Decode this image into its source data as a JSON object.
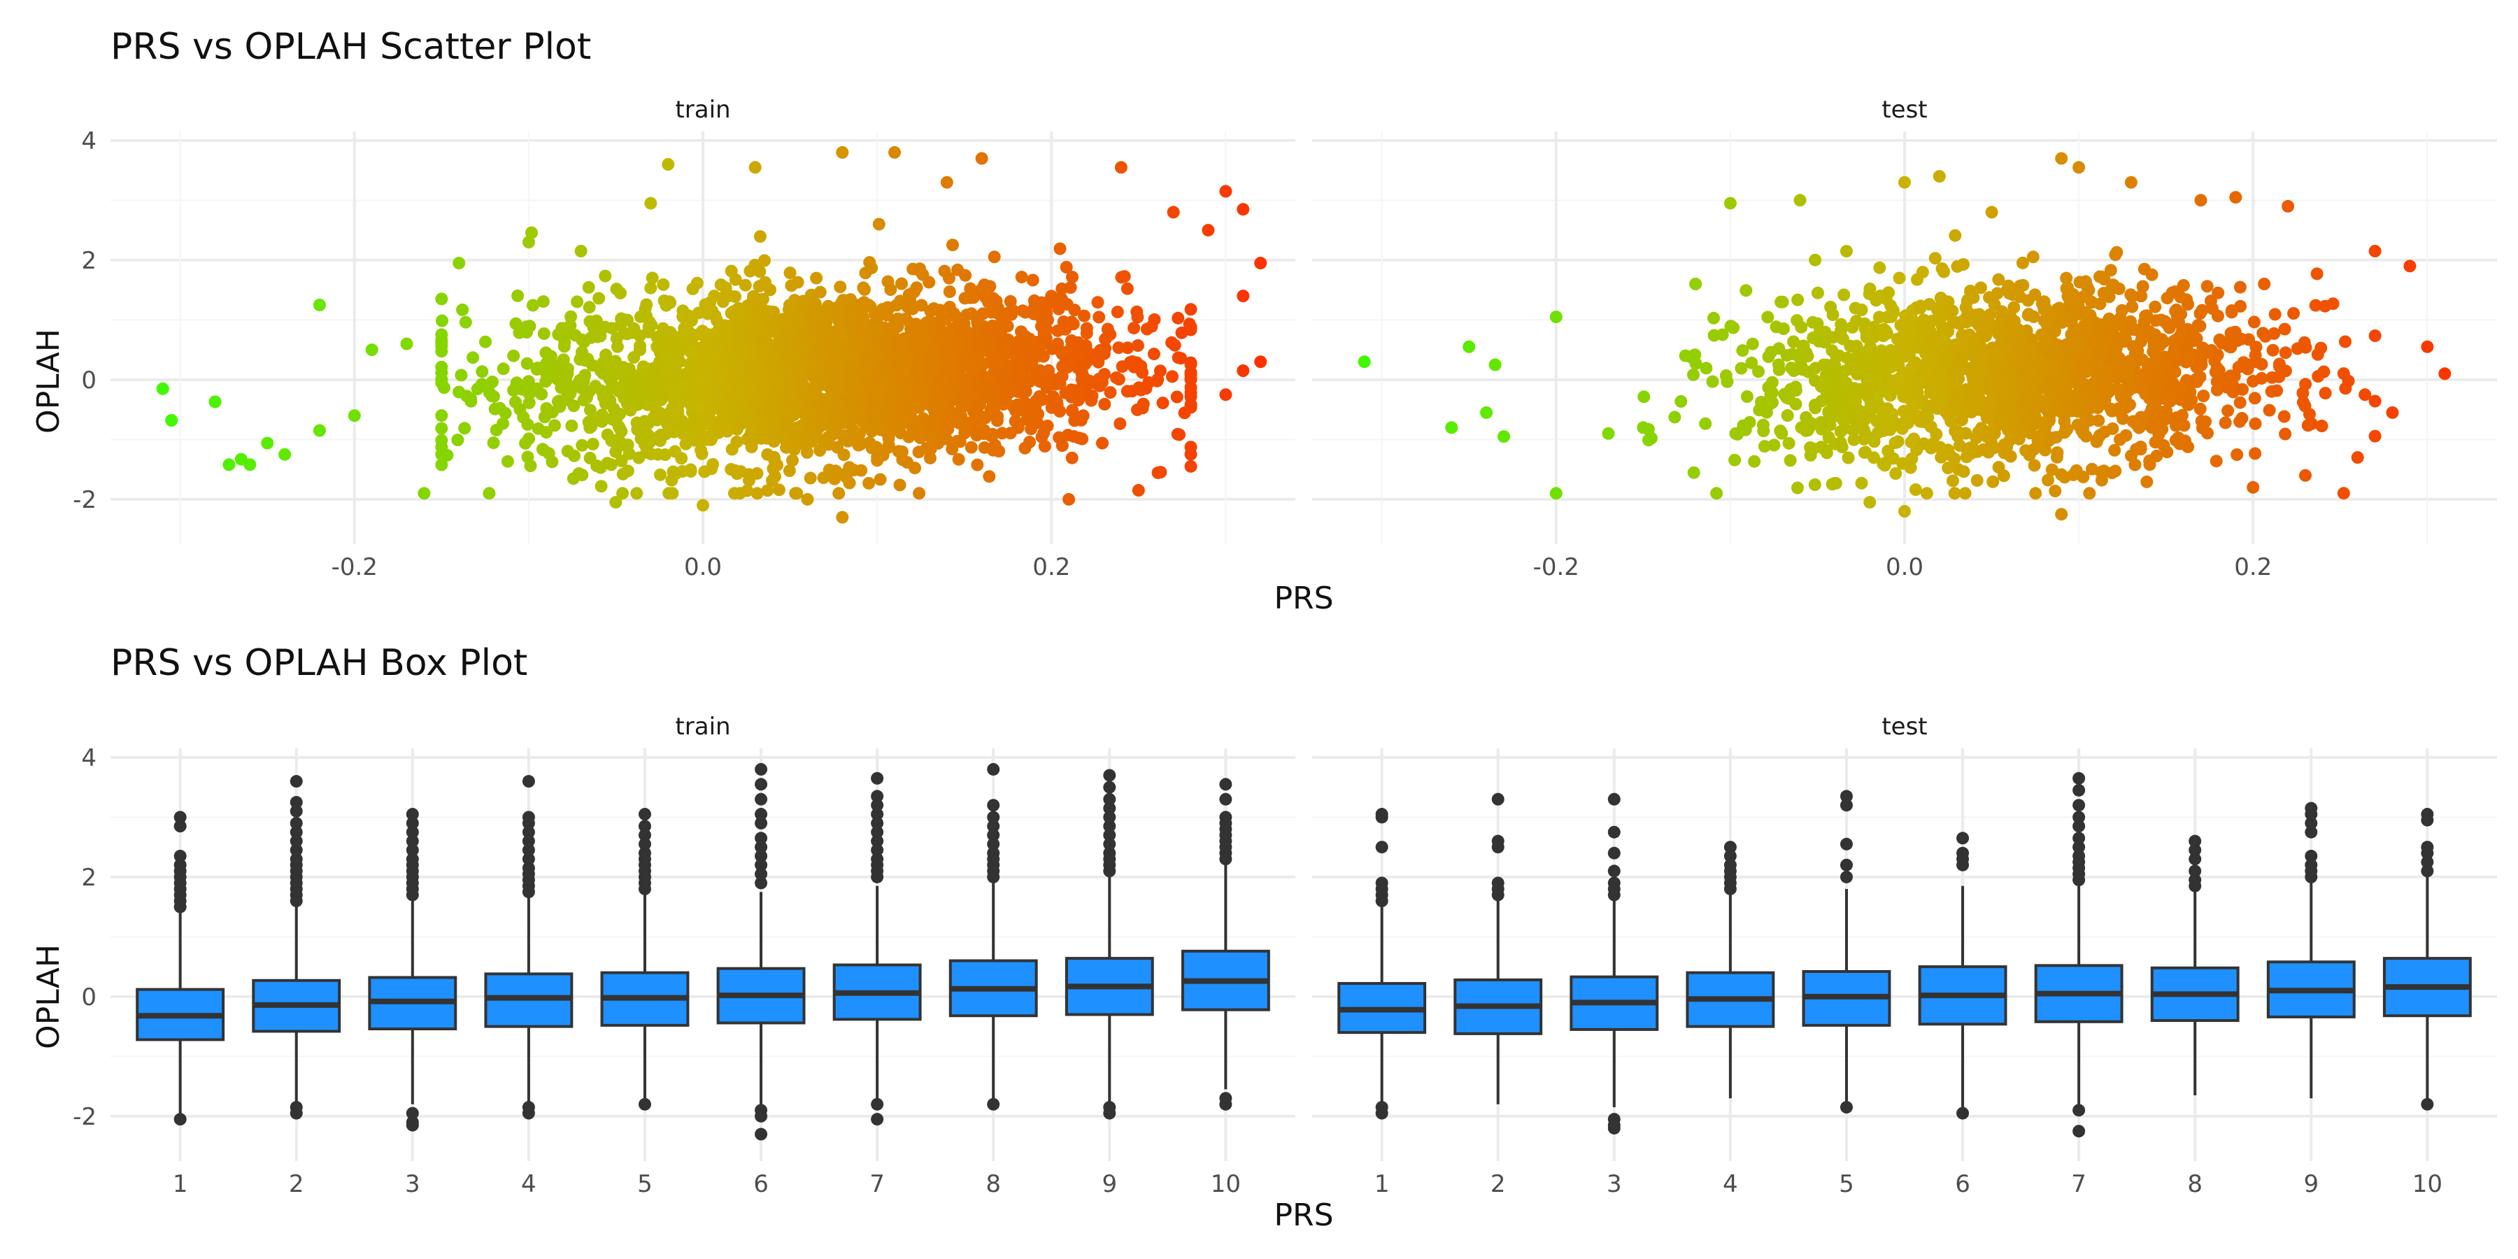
{
  "colors": {
    "scatter_low": "#33ff00",
    "scatter_mid": "#c8b400",
    "scatter_high": "#ff2a00",
    "box_fill": "#1e90ff",
    "box_line": "#333333",
    "grid_major": "#ebebeb",
    "grid_minor": "#f5f5f5"
  },
  "chart_data": [
    {
      "type": "scatter",
      "title": "PRS vs OPLAH Scatter Plot",
      "xlabel": "PRS",
      "ylabel": "OPLAH",
      "facets": [
        "train",
        "test"
      ],
      "xlim": [
        -0.34,
        0.34
      ],
      "ylim": [
        -2.75,
        4.15
      ],
      "x_ticks": [
        -0.2,
        0.0,
        0.2
      ],
      "x_tick_labels": [
        "-0.2",
        "0.0",
        "0.2"
      ],
      "y_ticks": [
        -2,
        0,
        2,
        4
      ],
      "y_tick_labels": [
        "-2",
        "0",
        "2",
        "4"
      ],
      "grid": true,
      "color_by": "x",
      "color_scale": "green-to-red gradient",
      "series": [
        {
          "facet": "train",
          "x_range": [
            -0.31,
            0.32
          ],
          "y_center": 0,
          "points": [
            [
              -0.31,
              -0.15
            ],
            [
              -0.305,
              -0.68
            ],
            [
              -0.28,
              -0.37
            ],
            [
              -0.272,
              -1.42
            ],
            [
              -0.265,
              -1.33
            ],
            [
              -0.26,
              -1.42
            ],
            [
              -0.25,
              -1.06
            ],
            [
              -0.24,
              -1.25
            ],
            [
              -0.22,
              1.25
            ],
            [
              -0.22,
              -0.85
            ],
            [
              -0.2,
              -0.6
            ],
            [
              -0.19,
              0.5
            ],
            [
              -0.17,
              0.6
            ],
            [
              -0.16,
              -1.9
            ],
            [
              -0.14,
              1.95
            ],
            [
              -0.1,
              2.3
            ],
            [
              -0.07,
              2.15
            ],
            [
              -0.05,
              -2.05
            ],
            [
              -0.03,
              2.95
            ],
            [
              -0.02,
              3.6
            ],
            [
              0.0,
              -2.1
            ],
            [
              0.03,
              3.55
            ],
            [
              0.06,
              -2.0
            ],
            [
              0.08,
              -2.3
            ],
            [
              0.08,
              3.8
            ],
            [
              0.11,
              3.8
            ],
            [
              0.14,
              3.3
            ],
            [
              0.16,
              3.7
            ],
            [
              0.21,
              -2.0
            ],
            [
              0.24,
              3.55
            ],
            [
              0.25,
              -1.85
            ],
            [
              0.27,
              2.8
            ],
            [
              0.28,
              -1.45
            ],
            [
              0.29,
              2.5
            ],
            [
              0.3,
              3.15
            ],
            [
              0.31,
              2.85
            ],
            [
              0.31,
              1.4
            ],
            [
              0.32,
              1.95
            ],
            [
              0.32,
              0.3
            ],
            [
              0.3,
              -0.25
            ],
            [
              0.31,
              0.15
            ]
          ]
        },
        {
          "facet": "test",
          "x_range": [
            -0.31,
            0.31
          ],
          "y_center": 0,
          "points": [
            [
              -0.31,
              0.3
            ],
            [
              -0.26,
              -0.8
            ],
            [
              -0.25,
              0.55
            ],
            [
              -0.24,
              -0.55
            ],
            [
              -0.235,
              0.25
            ],
            [
              -0.23,
              -0.95
            ],
            [
              -0.2,
              1.05
            ],
            [
              -0.2,
              -1.9
            ],
            [
              -0.17,
              -0.9
            ],
            [
              -0.12,
              1.6
            ],
            [
              -0.1,
              2.95
            ],
            [
              -0.07,
              1.3
            ],
            [
              -0.06,
              3.0
            ],
            [
              -0.02,
              -2.05
            ],
            [
              0.0,
              -2.2
            ],
            [
              0.0,
              3.3
            ],
            [
              0.02,
              3.4
            ],
            [
              0.05,
              2.8
            ],
            [
              0.09,
              -2.25
            ],
            [
              0.09,
              3.7
            ],
            [
              0.1,
              3.55
            ],
            [
              0.13,
              3.3
            ],
            [
              0.17,
              3.0
            ],
            [
              0.19,
              3.05
            ],
            [
              0.2,
              -1.8
            ],
            [
              0.22,
              2.9
            ],
            [
              0.23,
              -1.6
            ],
            [
              0.26,
              -1.3
            ],
            [
              0.27,
              2.15
            ],
            [
              0.28,
              -0.55
            ],
            [
              0.29,
              1.9
            ],
            [
              0.3,
              0.55
            ],
            [
              0.31,
              0.1
            ]
          ]
        }
      ]
    },
    {
      "type": "box",
      "title": "PRS vs OPLAH Box Plot",
      "xlabel": "PRS",
      "ylabel": "OPLAH",
      "facets": [
        "train",
        "test"
      ],
      "categories": [
        "1",
        "2",
        "3",
        "4",
        "5",
        "6",
        "7",
        "8",
        "9",
        "10"
      ],
      "ylim": [
        -2.75,
        4.15
      ],
      "y_ticks": [
        -2,
        0,
        2,
        4
      ],
      "y_tick_labels": [
        "-2",
        "0",
        "2",
        "4"
      ],
      "grid": true,
      "series": [
        {
          "facet": "train",
          "boxes": [
            {
              "category": "1",
              "q1": -0.72,
              "median": -0.32,
              "q3": 0.12,
              "whisker_low": -2.0,
              "whisker_high": 1.4,
              "outliers": [
                1.5,
                1.6,
                1.7,
                1.8,
                1.9,
                2.0,
                2.1,
                2.2,
                2.35,
                2.85,
                3.0,
                -2.05
              ]
            },
            {
              "category": "2",
              "q1": -0.58,
              "median": -0.14,
              "q3": 0.27,
              "whisker_low": -1.8,
              "whisker_high": 1.5,
              "outliers": [
                1.6,
                1.7,
                1.8,
                1.9,
                2.0,
                2.1,
                2.2,
                2.3,
                2.45,
                2.6,
                2.75,
                2.9,
                3.1,
                3.25,
                3.6,
                -1.85,
                -1.95
              ]
            },
            {
              "category": "3",
              "q1": -0.54,
              "median": -0.08,
              "q3": 0.32,
              "whisker_low": -1.8,
              "whisker_high": 1.6,
              "outliers": [
                1.7,
                1.8,
                1.9,
                2.0,
                2.1,
                2.2,
                2.3,
                2.45,
                2.6,
                2.75,
                2.9,
                3.05,
                -1.95,
                -2.1,
                -2.15
              ]
            },
            {
              "category": "4",
              "q1": -0.5,
              "median": -0.02,
              "q3": 0.38,
              "whisker_low": -1.8,
              "whisker_high": 1.65,
              "outliers": [
                1.75,
                1.85,
                1.95,
                2.05,
                2.15,
                2.3,
                2.45,
                2.6,
                2.75,
                2.9,
                3.0,
                3.6,
                -1.85,
                -1.95
              ]
            },
            {
              "category": "5",
              "q1": -0.48,
              "median": -0.02,
              "q3": 0.4,
              "whisker_low": -1.75,
              "whisker_high": 1.7,
              "outliers": [
                1.8,
                1.9,
                2.0,
                2.1,
                2.2,
                2.3,
                2.4,
                2.55,
                2.7,
                2.85,
                3.05,
                -1.8
              ]
            },
            {
              "category": "6",
              "q1": -0.44,
              "median": 0.02,
              "q3": 0.47,
              "whisker_low": -1.8,
              "whisker_high": 1.75,
              "outliers": [
                1.9,
                2.05,
                2.2,
                2.35,
                2.5,
                2.65,
                2.9,
                3.05,
                3.3,
                3.55,
                3.8,
                -1.9,
                -2.0,
                -2.3
              ]
            },
            {
              "category": "7",
              "q1": -0.38,
              "median": 0.06,
              "q3": 0.53,
              "whisker_low": -1.75,
              "whisker_high": 1.85,
              "outliers": [
                2.0,
                2.1,
                2.2,
                2.3,
                2.45,
                2.6,
                2.75,
                2.9,
                3.05,
                3.2,
                3.35,
                3.65,
                -1.8,
                -2.05
              ]
            },
            {
              "category": "8",
              "q1": -0.32,
              "median": 0.13,
              "q3": 0.6,
              "whisker_low": -1.7,
              "whisker_high": 1.9,
              "outliers": [
                2.0,
                2.1,
                2.2,
                2.3,
                2.4,
                2.55,
                2.7,
                2.85,
                3.0,
                3.2,
                3.8,
                -1.8
              ]
            },
            {
              "category": "9",
              "q1": -0.3,
              "median": 0.17,
              "q3": 0.64,
              "whisker_low": -1.75,
              "whisker_high": 2.0,
              "outliers": [
                2.1,
                2.2,
                2.3,
                2.4,
                2.55,
                2.7,
                2.85,
                3.0,
                3.15,
                3.3,
                3.5,
                3.7,
                -1.85,
                -1.95
              ]
            },
            {
              "category": "10",
              "q1": -0.22,
              "median": 0.26,
              "q3": 0.76,
              "whisker_low": -1.55,
              "whisker_high": 2.2,
              "outliers": [
                2.3,
                2.4,
                2.5,
                2.6,
                2.7,
                2.8,
                2.9,
                3.0,
                3.3,
                3.55,
                -1.7,
                -1.8
              ]
            }
          ]
        },
        {
          "facet": "test",
          "boxes": [
            {
              "category": "1",
              "q1": -0.6,
              "median": -0.22,
              "q3": 0.22,
              "whisker_low": -1.8,
              "whisker_high": 1.5,
              "outliers": [
                1.6,
                1.7,
                1.8,
                1.9,
                2.5,
                3.0,
                3.05,
                -1.85,
                -1.95
              ]
            },
            {
              "category": "2",
              "q1": -0.62,
              "median": -0.16,
              "q3": 0.28,
              "whisker_low": -1.8,
              "whisker_high": 1.6,
              "outliers": [
                1.7,
                1.8,
                1.9,
                2.5,
                2.6,
                3.3
              ]
            },
            {
              "category": "3",
              "q1": -0.55,
              "median": -0.1,
              "q3": 0.33,
              "whisker_low": -1.85,
              "whisker_high": 1.6,
              "outliers": [
                1.7,
                1.8,
                1.9,
                2.1,
                2.4,
                2.75,
                3.3,
                -2.05,
                -2.15,
                -2.2
              ]
            },
            {
              "category": "4",
              "q1": -0.5,
              "median": -0.04,
              "q3": 0.4,
              "whisker_low": -1.7,
              "whisker_high": 1.7,
              "outliers": [
                1.8,
                1.9,
                2.0,
                2.1,
                2.2,
                2.35,
                2.5
              ]
            },
            {
              "category": "5",
              "q1": -0.48,
              "median": 0.0,
              "q3": 0.42,
              "whisker_low": -1.75,
              "whisker_high": 1.8,
              "outliers": [
                2.0,
                2.2,
                2.55,
                3.2,
                3.35,
                -1.85
              ]
            },
            {
              "category": "6",
              "q1": -0.46,
              "median": 0.02,
              "q3": 0.5,
              "whisker_low": -1.85,
              "whisker_high": 1.85,
              "outliers": [
                2.2,
                2.3,
                2.4,
                2.65,
                -1.95
              ]
            },
            {
              "category": "7",
              "q1": -0.42,
              "median": 0.05,
              "q3": 0.52,
              "whisker_low": -1.8,
              "whisker_high": 1.85,
              "outliers": [
                1.95,
                2.05,
                2.15,
                2.25,
                2.35,
                2.5,
                2.65,
                2.85,
                3.0,
                3.2,
                3.45,
                3.65,
                -1.9,
                -2.25
              ]
            },
            {
              "category": "8",
              "q1": -0.4,
              "median": 0.04,
              "q3": 0.48,
              "whisker_low": -1.65,
              "whisker_high": 1.75,
              "outliers": [
                1.85,
                1.95,
                2.1,
                2.3,
                2.45,
                2.6
              ]
            },
            {
              "category": "9",
              "q1": -0.34,
              "median": 0.1,
              "q3": 0.58,
              "whisker_low": -1.7,
              "whisker_high": 1.9,
              "outliers": [
                2.0,
                2.1,
                2.2,
                2.35,
                2.75,
                2.9,
                3.05,
                3.15
              ]
            },
            {
              "category": "10",
              "q1": -0.32,
              "median": 0.16,
              "q3": 0.64,
              "whisker_low": -1.75,
              "whisker_high": 2.0,
              "outliers": [
                2.1,
                2.25,
                2.4,
                2.5,
                2.95,
                3.05,
                -1.8
              ]
            }
          ]
        }
      ]
    }
  ]
}
